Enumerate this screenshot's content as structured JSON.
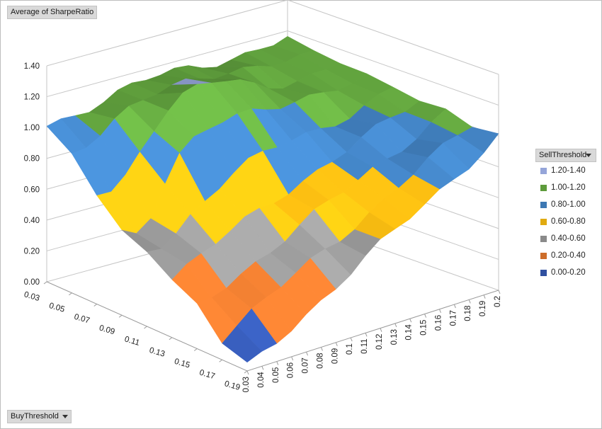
{
  "pivot_fields": {
    "value_field": "Average of SharpeRatio",
    "axis_field": "BuyThreshold",
    "legend_field": "SellThreshold"
  },
  "legend": {
    "items": [
      {
        "label": "1.20-1.40",
        "color": "#95a5d9"
      },
      {
        "label": "1.00-1.20",
        "color": "#5d9b3b"
      },
      {
        "label": "0.80-1.00",
        "color": "#3d78b3"
      },
      {
        "label": "0.60-0.80",
        "color": "#e0aa10"
      },
      {
        "label": "0.40-0.60",
        "color": "#8a8a8a"
      },
      {
        "label": "0.20-0.40",
        "color": "#cd6d2a"
      },
      {
        "label": "0.00-0.20",
        "color": "#3050a0"
      }
    ]
  },
  "chart_data": {
    "type": "surface",
    "zlim": [
      0,
      1.4
    ],
    "z_ticks": [
      "0.00",
      "0.20",
      "0.40",
      "0.60",
      "0.80",
      "1.00",
      "1.20",
      "1.40"
    ],
    "x_axis_label": "BuyThreshold",
    "x_ticks": [
      "0.03",
      "0.05",
      "0.07",
      "0.09",
      "0.11",
      "0.13",
      "0.15",
      "0.17",
      "0.19"
    ],
    "y_axis_label": "SellThreshold",
    "y_ticks": [
      "0.03",
      "0.04",
      "0.05",
      "0.06",
      "0.07",
      "0.08",
      "0.09",
      "0.1",
      "0.11",
      "0.12",
      "0.13",
      "0.14",
      "0.15",
      "0.16",
      "0.17",
      "0.18",
      "0.19",
      "0.2"
    ],
    "surface_profile": {
      "corner_left_z": 1.0,
      "corner_back_z": 1.15,
      "corner_right_z": 1.0,
      "corner_front_z": 0.02,
      "peak_z": 1.25
    }
  }
}
